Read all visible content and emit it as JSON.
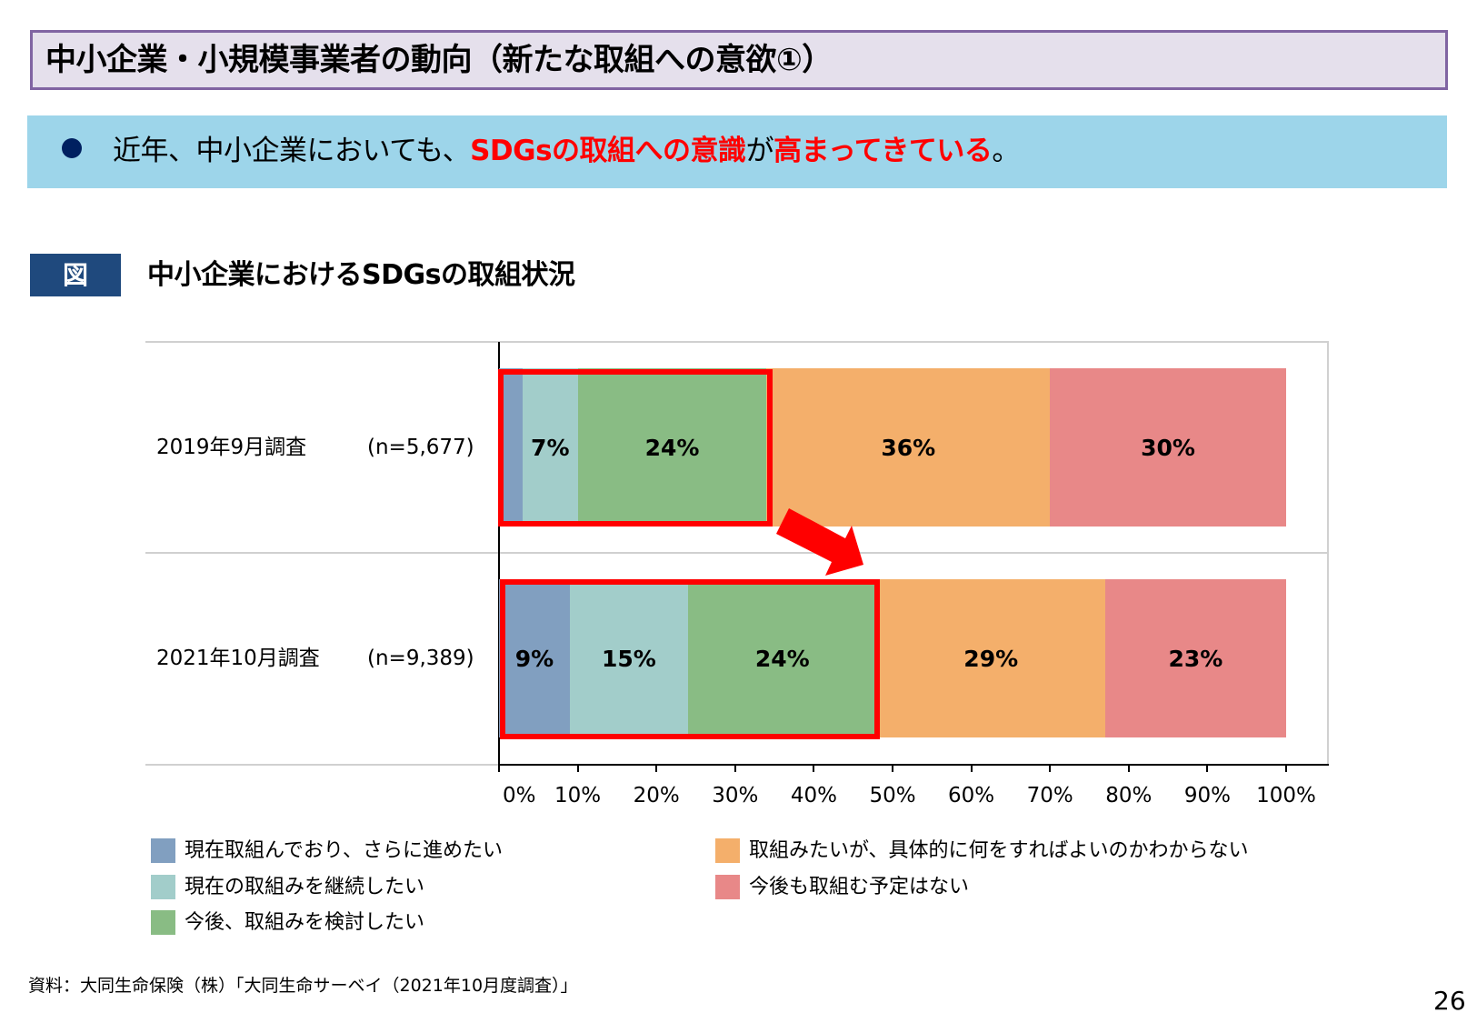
{
  "header": {
    "title": "中小企業・小規模事業者の動向（新たな取組への意欲①）"
  },
  "summary": {
    "bullet_icon": "filled-circle",
    "text_parts": [
      {
        "text": "近年、中小企業においても、",
        "highlight": false
      },
      {
        "text": "SDGsの取組への意識",
        "highlight": true
      },
      {
        "text": "が",
        "highlight": false
      },
      {
        "text": "高まってきている",
        "highlight": true
      },
      {
        "text": "。",
        "highlight": false
      }
    ]
  },
  "figure": {
    "badge": "図",
    "title": "中小企業におけるSDGsの取組状況"
  },
  "chart_data": {
    "type": "bar",
    "orientation": "horizontal",
    "stacked": true,
    "title": "中小企業におけるSDGsの取組状況",
    "xlabel": "",
    "ylabel": "",
    "categories": [
      "2019年9月調査",
      "2021年10月調査"
    ],
    "sample_sizes": [
      "(n=5,677)",
      "(n=9,389)"
    ],
    "series": [
      {
        "name": "現在取組んでおり、さらに進めたい",
        "color": "#819FC0",
        "values": [
          3,
          9
        ],
        "labels": [
          "",
          "9%"
        ]
      },
      {
        "name": "現在の取組みを継続したい",
        "color": "#A2CDCA",
        "values": [
          7,
          15
        ],
        "labels": [
          "7%",
          "15%"
        ]
      },
      {
        "name": "今後、取組みを検討したい",
        "color": "#89BC84",
        "values": [
          24,
          24
        ],
        "labels": [
          "24%",
          "24%"
        ]
      },
      {
        "name": "取組みたいが、具体的に何をすればよいのかわからない",
        "color": "#F4AF6B",
        "values": [
          36,
          29
        ],
        "labels": [
          "36%",
          "29%"
        ]
      },
      {
        "name": "今後も取組む予定はない",
        "color": "#E88888",
        "values": [
          30,
          23
        ],
        "labels": [
          "30%",
          "23%"
        ]
      }
    ],
    "xlim": [
      0,
      100
    ],
    "xticks": [
      "0%",
      "10%",
      "20%",
      "30%",
      "40%",
      "50%",
      "60%",
      "70%",
      "80%",
      "90%",
      "100%"
    ],
    "grid": true,
    "legend_position": "bottom",
    "annotations": [
      {
        "type": "highlight-box",
        "category": "2019年9月調査",
        "range": [
          0,
          34
        ],
        "color": "#FF0000"
      },
      {
        "type": "highlight-box",
        "category": "2021年10月調査",
        "range": [
          0,
          48
        ],
        "color": "#FF0000"
      },
      {
        "type": "arrow",
        "direction": "down-right",
        "from": "2019年9月調査",
        "to": "2021年10月調査",
        "color": "#FF0000"
      }
    ]
  },
  "source": "資料：大同生命保険（株）「大同生命サーベイ（2021年10月度調査）」",
  "page_number": "26",
  "colors": {
    "title_bg": "#E5E0EC",
    "title_border": "#8064A2",
    "banner_bg": "#9DD5EA",
    "bullet": "#002060",
    "highlight_text": "#FF0000",
    "figure_badge": "#1F497D",
    "annotation_red": "#FF0000"
  }
}
